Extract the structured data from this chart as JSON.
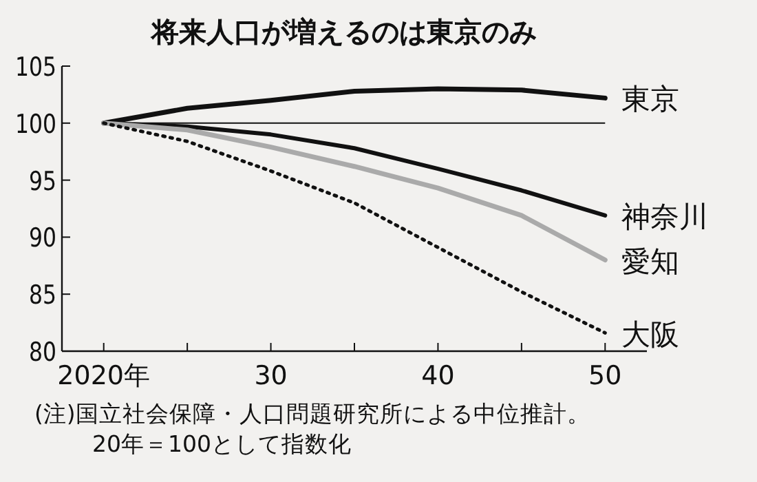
{
  "chart_data": {
    "type": "line",
    "title": "将来人口が増えるのは東京のみ",
    "x": [
      2020,
      2025,
      2030,
      2035,
      2040,
      2045,
      2050
    ],
    "series": [
      {
        "name": "東京",
        "color": "#111111",
        "line_style": "solid",
        "values": [
          100,
          101.3,
          102.0,
          102.8,
          103.0,
          102.9,
          102.2
        ]
      },
      {
        "name": "神奈川",
        "color": "#111111",
        "line_style": "solid",
        "values": [
          100,
          99.7,
          99.0,
          97.8,
          96.0,
          94.1,
          91.9
        ]
      },
      {
        "name": "愛知",
        "color": "#aaaaaa",
        "line_style": "solid",
        "values": [
          100,
          99.4,
          97.9,
          96.2,
          94.3,
          91.9,
          88.0
        ]
      },
      {
        "name": "大阪",
        "color": "#111111",
        "line_style": "dotted",
        "values": [
          100,
          98.4,
          95.8,
          93.0,
          89.1,
          85.2,
          81.6
        ]
      }
    ],
    "xlim": [
      2017.5,
      2052.5
    ],
    "ylim": [
      80,
      105
    ],
    "xticks": [
      {
        "value": 2020,
        "label": "2020年"
      },
      {
        "value": 2025,
        "label": null
      },
      {
        "value": 2030,
        "label": "30"
      },
      {
        "value": 2035,
        "label": null
      },
      {
        "value": 2040,
        "label": "40"
      },
      {
        "value": 2045,
        "label": null
      },
      {
        "value": 2050,
        "label": "50"
      }
    ],
    "yticks": [
      80,
      85,
      90,
      95,
      100,
      105
    ],
    "ref_lines": [
      {
        "axis": "y",
        "value": 100,
        "color": "#111111"
      }
    ],
    "grid": false,
    "legend": false,
    "marker": "none",
    "annotations": [
      "(注)国立社会保障・人口問題研究所による中位推計。",
      "20年＝100として指数化"
    ]
  }
}
